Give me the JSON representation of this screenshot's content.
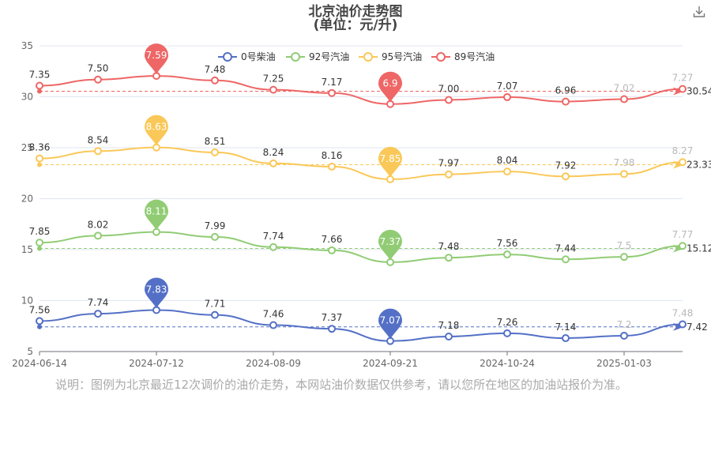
{
  "chart_data": {
    "type": "line",
    "title": "北京油价走势图",
    "subtitle": "(单位：元/升)",
    "x_tick_labels": [
      "2024-06-14",
      "2024-07-12",
      "2024-08-09",
      "2024-09-21",
      "2024-10-24",
      "2025-01-03"
    ],
    "y_ticks": [
      5,
      10,
      15,
      20,
      25,
      30,
      35
    ],
    "ylim": [
      5,
      35
    ],
    "legend_position": "top-center",
    "series": [
      {
        "name": "0号柴油",
        "color": "#5470c6",
        "labels": [
          "7.56",
          "7.74",
          "7.83",
          "7.71",
          "7.46",
          "7.37",
          "7.07",
          "7.18",
          "7.26",
          "7.14",
          "7.2",
          "7.48"
        ],
        "values": [
          7.56,
          7.74,
          7.83,
          7.71,
          7.46,
          7.37,
          7.07,
          7.18,
          7.26,
          7.14,
          7.2,
          7.48
        ],
        "max_label": "7.83",
        "min_label": "7.07",
        "avg_label": "7.42",
        "avg": 7.42
      },
      {
        "name": "92号汽油",
        "color": "#91cc75",
        "labels": [
          "7.85",
          "8.02",
          "8.11",
          "7.99",
          "7.74",
          "7.66",
          "7.37",
          "7.48",
          "7.56",
          "7.44",
          "7.5",
          "7.77"
        ],
        "values": [
          7.85,
          8.02,
          8.11,
          7.99,
          7.74,
          7.66,
          7.37,
          7.48,
          7.56,
          7.44,
          7.5,
          7.77
        ],
        "max_label": "8.11",
        "min_label": "7.37",
        "avg_label": "15.12",
        "avg": 15.12
      },
      {
        "name": "95号汽油",
        "color": "#fac858",
        "labels": [
          "8.36",
          "8.54",
          "8.63",
          "8.51",
          "8.24",
          "8.16",
          "7.85",
          "7.97",
          "8.04",
          "7.92",
          "7.98",
          "8.27"
        ],
        "values": [
          8.36,
          8.54,
          8.63,
          8.51,
          8.24,
          8.16,
          7.85,
          7.97,
          8.04,
          7.92,
          7.98,
          8.27
        ],
        "max_label": "8.63",
        "min_label": "7.85",
        "avg_label": "23.33",
        "avg": 23.33
      },
      {
        "name": "89号汽油",
        "color": "#ee6666",
        "labels": [
          "7.35",
          "7.50",
          "7.59",
          "7.48",
          "7.25",
          "7.17",
          "6.9",
          "7.00",
          "7.07",
          "6.96",
          "7.02",
          "7.27"
        ],
        "values": [
          7.35,
          7.5,
          7.59,
          7.48,
          7.25,
          7.17,
          6.9,
          7.0,
          7.07,
          6.96,
          7.02,
          7.27
        ],
        "max_label": "7.59",
        "min_label": "6.9",
        "avg_label": "30.54",
        "avg": 30.54
      }
    ]
  },
  "footnote": "说明：图例为北京最近12次调价的油价走势，本网站油价数据仅供参考，请以您所在地区的加油站报价为准。",
  "toolbar": {
    "download_icon": "download-icon"
  }
}
